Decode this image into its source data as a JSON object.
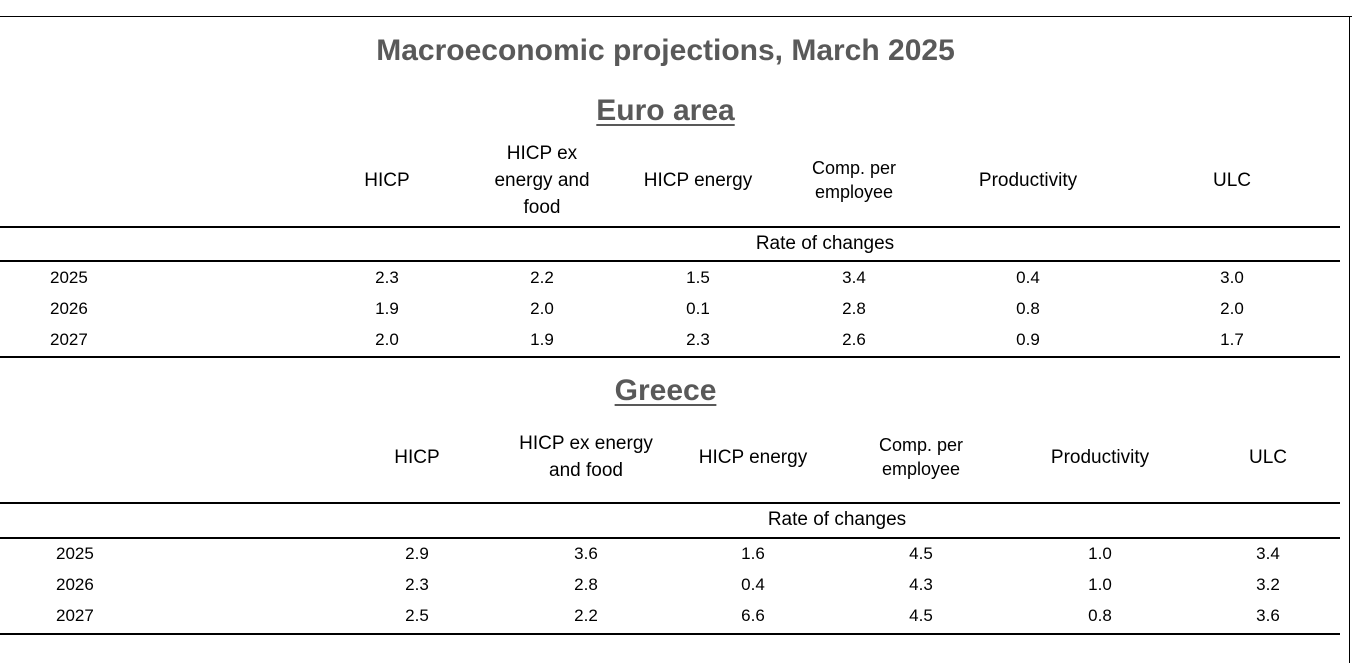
{
  "title": "Macroeconomic projections, March 2025",
  "rate_label": "Rate of changes",
  "euro_area": {
    "heading": "Euro area",
    "columns": [
      "HICP",
      "HICP ex\nenergy and\nfood",
      "HICP energy",
      "Comp. per\nemployee",
      "Productivity",
      "ULC"
    ],
    "rows": [
      {
        "year": "2025",
        "values": [
          "2.3",
          "2.2",
          "1.5",
          "3.4",
          "0.4",
          "3.0"
        ]
      },
      {
        "year": "2026",
        "values": [
          "1.9",
          "2.0",
          "0.1",
          "2.8",
          "0.8",
          "2.0"
        ]
      },
      {
        "year": "2027",
        "values": [
          "2.0",
          "1.9",
          "2.3",
          "2.6",
          "0.9",
          "1.7"
        ]
      }
    ]
  },
  "greece": {
    "heading": "Greece",
    "columns": [
      "HICP",
      "HICP ex energy\nand food",
      "HICP energy",
      "Comp. per\nemployee",
      "Productivity",
      "ULC"
    ],
    "rows": [
      {
        "year": "2025",
        "values": [
          "2.9",
          "3.6",
          "1.6",
          "4.5",
          "1.0",
          "3.4"
        ]
      },
      {
        "year": "2026",
        "values": [
          "2.3",
          "2.8",
          "0.4",
          "4.3",
          "1.0",
          "3.2"
        ]
      },
      {
        "year": "2027",
        "values": [
          "2.5",
          "2.2",
          "6.6",
          "4.5",
          "0.8",
          "3.6"
        ]
      }
    ]
  }
}
